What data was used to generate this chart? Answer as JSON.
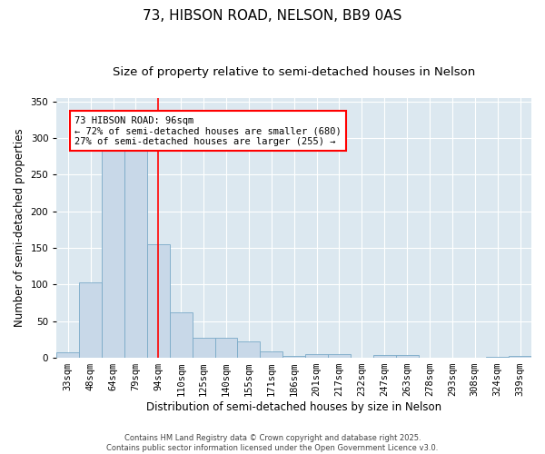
{
  "title1": "73, HIBSON ROAD, NELSON, BB9 0AS",
  "title2": "Size of property relative to semi-detached houses in Nelson",
  "xlabel": "Distribution of semi-detached houses by size in Nelson",
  "ylabel": "Number of semi-detached properties",
  "categories": [
    "33sqm",
    "48sqm",
    "64sqm",
    "79sqm",
    "94sqm",
    "110sqm",
    "125sqm",
    "140sqm",
    "155sqm",
    "171sqm",
    "186sqm",
    "201sqm",
    "217sqm",
    "232sqm",
    "247sqm",
    "263sqm",
    "278sqm",
    "293sqm",
    "308sqm",
    "324sqm",
    "339sqm"
  ],
  "values": [
    7,
    103,
    285,
    282,
    155,
    62,
    27,
    27,
    22,
    9,
    2,
    5,
    5,
    0,
    4,
    4,
    0,
    0,
    0,
    1,
    2
  ],
  "bar_color": "#c8d8e8",
  "bar_edge_color": "#7aaac8",
  "vline_x_index": 4,
  "vline_color": "red",
  "annotation_text": "73 HIBSON ROAD: 96sqm\n← 72% of semi-detached houses are smaller (680)\n27% of semi-detached houses are larger (255) →",
  "annotation_box_color": "white",
  "annotation_box_edge_color": "red",
  "ylim": [
    0,
    355
  ],
  "yticks": [
    0,
    50,
    100,
    150,
    200,
    250,
    300,
    350
  ],
  "background_color": "#dce8f0",
  "footnote": "Contains HM Land Registry data © Crown copyright and database right 2025.\nContains public sector information licensed under the Open Government Licence v3.0.",
  "title1_fontsize": 11,
  "title2_fontsize": 9.5,
  "label_fontsize": 8.5,
  "tick_fontsize": 7.5,
  "annotation_fontsize": 7.5,
  "footnote_fontsize": 6.0
}
